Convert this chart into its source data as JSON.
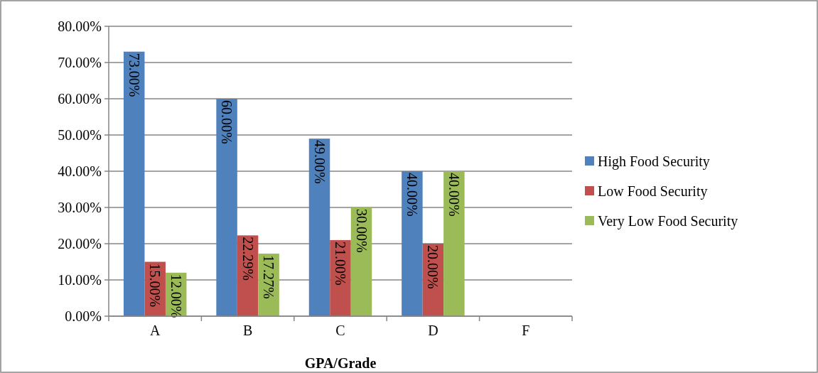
{
  "chart_data": {
    "type": "bar",
    "xlabel": "GPA/Grade",
    "categories": [
      "A",
      "B",
      "C",
      "D",
      "F"
    ],
    "series": [
      {
        "name": "High Food Security",
        "color": "#4f81bd",
        "values": [
          73,
          60,
          49,
          40,
          null
        ],
        "value_labels": [
          "73.00%",
          "60.00%",
          "49.00%",
          "40.00%",
          null
        ]
      },
      {
        "name": "Low Food Security",
        "color": "#c0504d",
        "values": [
          15,
          22.29,
          21,
          20,
          null
        ],
        "value_labels": [
          "15.00%",
          "22.29%",
          "21.00%",
          "20.00%",
          null
        ]
      },
      {
        "name": "Very Low Food Security",
        "color": "#9bbb59",
        "values": [
          12,
          17.27,
          30,
          40,
          null
        ],
        "value_labels": [
          "12.00%",
          "17.27%",
          "30.00%",
          "40.00%",
          null
        ]
      }
    ],
    "ylim": [
      0,
      80
    ],
    "yticks": [
      {
        "value": 0,
        "label": "0.00%"
      },
      {
        "value": 10,
        "label": "10.00%"
      },
      {
        "value": 20,
        "label": "20.00%"
      },
      {
        "value": 30,
        "label": "30.00%"
      },
      {
        "value": 40,
        "label": "40.00%"
      },
      {
        "value": 50,
        "label": "50.00%"
      },
      {
        "value": 60,
        "label": "60.00%"
      },
      {
        "value": 70,
        "label": "70.00%"
      },
      {
        "value": 80,
        "label": "80.00%"
      }
    ],
    "grid": "y",
    "legend": "right"
  }
}
